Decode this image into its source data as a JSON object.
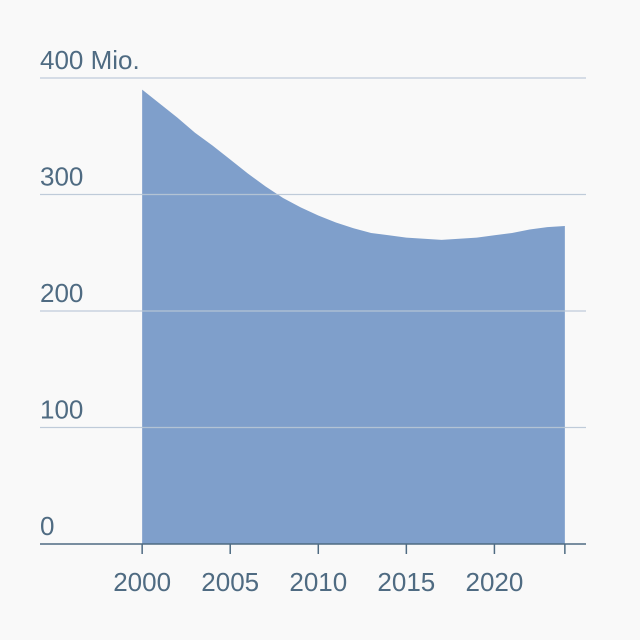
{
  "chart_data": {
    "type": "area",
    "title": "",
    "xlabel": "",
    "ylabel": "",
    "x": [
      2000,
      2001,
      2002,
      2003,
      2004,
      2005,
      2006,
      2007,
      2008,
      2009,
      2010,
      2011,
      2012,
      2013,
      2014,
      2015,
      2016,
      2017,
      2018,
      2019,
      2020,
      2021,
      2022,
      2023,
      2024
    ],
    "series": [
      {
        "name": "",
        "values": [
          390,
          378,
          366,
          353,
          342,
          330,
          318,
          307,
          297,
          289,
          282,
          276,
          271,
          267,
          265,
          263,
          262,
          261,
          262,
          263,
          265,
          267,
          270,
          272,
          273
        ]
      }
    ],
    "ylim": [
      0,
      400
    ],
    "xlim": [
      1994.2,
      2025.2
    ],
    "y_ticks": [
      {
        "value": 0,
        "label": "0"
      },
      {
        "value": 100,
        "label": "100"
      },
      {
        "value": 200,
        "label": "200"
      },
      {
        "value": 300,
        "label": "300"
      },
      {
        "value": 400,
        "label": "400 Mio."
      }
    ],
    "x_ticks": [
      {
        "value": 2000,
        "label": "2000"
      },
      {
        "value": 2005,
        "label": "2005"
      },
      {
        "value": 2010,
        "label": "2010"
      },
      {
        "value": 2015,
        "label": "2015"
      },
      {
        "value": 2020,
        "label": "2020"
      },
      {
        "value": 2024,
        "label": ""
      }
    ],
    "grid": true,
    "legend": "none",
    "colors": {
      "area": "#7f9fcb",
      "grid": "#b9c7d6",
      "axis": "#4f6b82",
      "text": "#4f6b82",
      "background": "#f9f9f9"
    }
  }
}
